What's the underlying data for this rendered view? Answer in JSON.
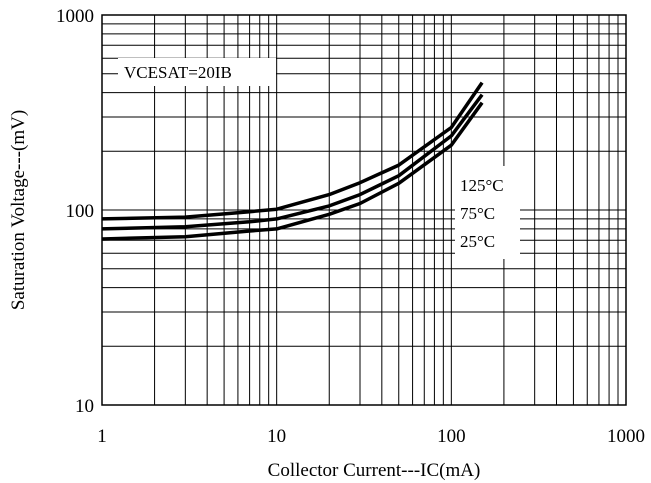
{
  "chart_data": {
    "type": "line",
    "xlabel": "Collector Current---IC(mA)",
    "ylabel": "Saturation Voltage---(mV)",
    "xscale": "log",
    "yscale": "log",
    "xlim": [
      1,
      1000
    ],
    "ylim": [
      10,
      1000
    ],
    "grid": true,
    "x_ticks": [
      "1",
      "10",
      "100",
      "1000"
    ],
    "y_ticks": [
      "10",
      "100",
      "1000"
    ],
    "condition_label": "VCESAT=20IB",
    "series": [
      {
        "name": "125°C",
        "x": [
          1,
          3,
          7,
          10,
          20,
          30,
          50,
          100,
          150
        ],
        "y": [
          90,
          92,
          98,
          101,
          120,
          138,
          170,
          265,
          450
        ]
      },
      {
        "name": "75°C",
        "x": [
          1,
          3,
          7,
          10,
          20,
          30,
          50,
          100,
          150
        ],
        "y": [
          80,
          82,
          87,
          90,
          105,
          120,
          150,
          240,
          390
        ]
      },
      {
        "name": "25°C",
        "x": [
          1,
          3,
          7,
          10,
          20,
          30,
          50,
          100,
          150
        ],
        "y": [
          71,
          73,
          78,
          80,
          95,
          108,
          137,
          215,
          355
        ]
      }
    ]
  }
}
